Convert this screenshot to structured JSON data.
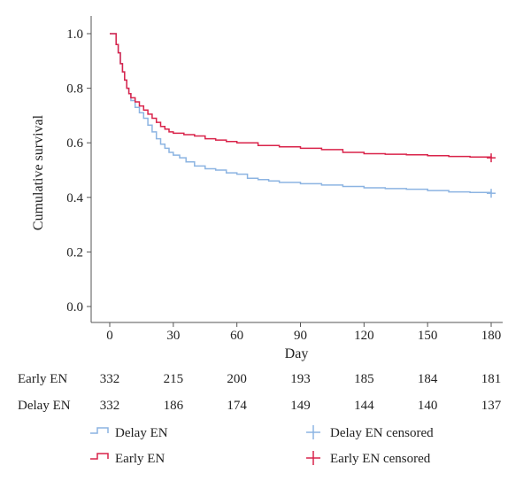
{
  "chart_data": {
    "type": "line",
    "title": "",
    "xlabel": "Day",
    "ylabel": "Cumulative survival",
    "xlim": [
      0,
      180
    ],
    "ylim": [
      0,
      1.0
    ],
    "x_ticks": [
      0,
      30,
      60,
      90,
      120,
      150,
      180
    ],
    "x_tick_labels": [
      "0",
      "30",
      "60",
      "90",
      "120",
      "150",
      "180"
    ],
    "y_ticks": [
      0,
      0.2,
      0.4,
      0.6,
      0.8,
      1.0
    ],
    "y_tick_labels": [
      "0.0",
      "0.2",
      "0.4",
      "0.6",
      "0.8",
      "1.0"
    ],
    "grid": false,
    "legend_position": "bottom",
    "series": [
      {
        "name": "Delay EN",
        "color": "#8cb4e2",
        "censored_at": [
          180,
          0.415
        ],
        "x": [
          0,
          3,
          4,
          5,
          6,
          7,
          8,
          9,
          10,
          12,
          14,
          16,
          18,
          20,
          22,
          24,
          26,
          28,
          30,
          33,
          36,
          40,
          45,
          50,
          55,
          60,
          65,
          70,
          75,
          80,
          90,
          100,
          110,
          120,
          130,
          140,
          150,
          160,
          170,
          180
        ],
        "y": [
          1.0,
          0.96,
          0.93,
          0.89,
          0.86,
          0.83,
          0.8,
          0.78,
          0.755,
          0.73,
          0.71,
          0.69,
          0.665,
          0.64,
          0.615,
          0.595,
          0.58,
          0.565,
          0.555,
          0.545,
          0.53,
          0.515,
          0.505,
          0.5,
          0.49,
          0.485,
          0.47,
          0.465,
          0.46,
          0.455,
          0.45,
          0.445,
          0.44,
          0.435,
          0.432,
          0.43,
          0.425,
          0.42,
          0.418,
          0.415
        ]
      },
      {
        "name": "Early EN",
        "color": "#d9234a",
        "censored_at": [
          180,
          0.545
        ],
        "x": [
          0,
          3,
          4,
          5,
          6,
          7,
          8,
          9,
          10,
          12,
          14,
          16,
          18,
          20,
          22,
          24,
          26,
          28,
          30,
          35,
          40,
          45,
          50,
          55,
          60,
          70,
          80,
          90,
          100,
          110,
          120,
          130,
          140,
          150,
          160,
          170,
          180
        ],
        "y": [
          1.0,
          0.96,
          0.93,
          0.89,
          0.86,
          0.83,
          0.8,
          0.78,
          0.765,
          0.75,
          0.735,
          0.72,
          0.705,
          0.69,
          0.675,
          0.66,
          0.65,
          0.64,
          0.635,
          0.63,
          0.625,
          0.615,
          0.61,
          0.605,
          0.6,
          0.59,
          0.585,
          0.58,
          0.575,
          0.565,
          0.56,
          0.558,
          0.556,
          0.553,
          0.55,
          0.548,
          0.545
        ]
      }
    ],
    "risk_table": {
      "rows": [
        {
          "label": "Early EN",
          "counts": [
            "332",
            "215",
            "200",
            "193",
            "185",
            "184",
            "181"
          ]
        },
        {
          "label": "Delay EN",
          "counts": [
            "332",
            "186",
            "174",
            "149",
            "144",
            "140",
            "137"
          ]
        }
      ]
    },
    "legend": {
      "items": [
        {
          "label": "Delay EN",
          "marker": "step-icon",
          "color": "#8cb4e2"
        },
        {
          "label": "Early EN",
          "marker": "step-icon",
          "color": "#d9234a"
        },
        {
          "label": "Delay EN censored",
          "marker": "plus-icon",
          "color": "#8cb4e2"
        },
        {
          "label": "Early EN censored",
          "marker": "plus-icon",
          "color": "#d9234a"
        }
      ]
    }
  }
}
